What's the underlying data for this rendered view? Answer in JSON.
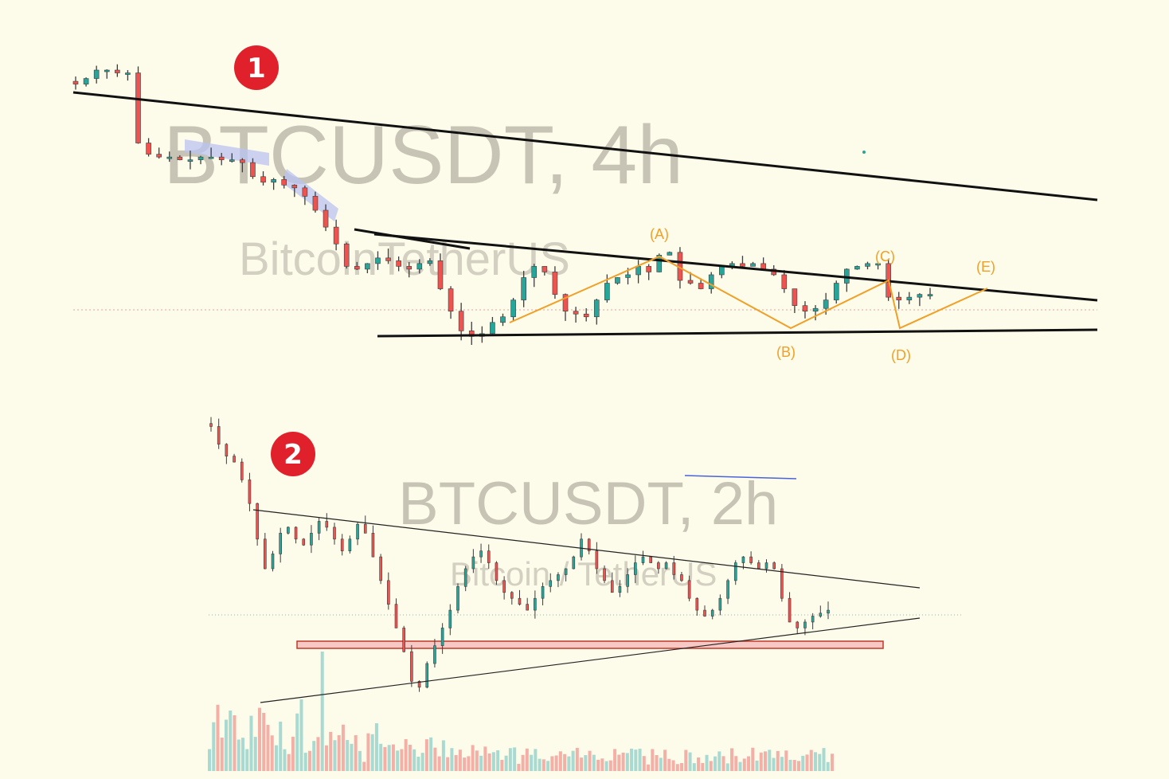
{
  "colors": {
    "background": "#fdfbe9",
    "up": "#26a69a",
    "down": "#ef5350",
    "wick": "#3c3c3c",
    "trendline": "#111111",
    "wave": "#f0a028",
    "watermark": "#c7c4b6",
    "badge": "#e0202a",
    "channel": "#7b8fe0",
    "support_zone": "#f8c8c4"
  },
  "panel1": {
    "badge": "1",
    "watermark_title": "BTCUSDT, 4h",
    "watermark_subtitle": "BitcoinTetherUS",
    "wave_labels": [
      "(A)",
      "(B)",
      "(C)",
      "(D)",
      "(E)"
    ]
  },
  "panel2": {
    "badge": "2",
    "watermark_title": "BTCUSDT, 2h",
    "watermark_subtitle": "Bitcoin / TetherUS"
  },
  "chart_data": [
    {
      "type": "candlestick",
      "title": "BTCUSDT, 4h",
      "subtitle": "BitcoinTetherUS",
      "description_pattern": "descending trendline above contracting triangle",
      "close_series_relative": [
        0.95,
        0.97,
        1.0,
        1.0,
        0.99,
        0.99,
        0.74,
        0.7,
        0.69,
        0.69,
        0.68,
        0.68,
        0.69,
        0.69,
        0.68,
        0.68,
        0.67,
        0.62,
        0.6,
        0.61,
        0.59,
        0.58,
        0.55,
        0.5,
        0.44,
        0.38,
        0.3,
        0.29,
        0.31,
        0.33,
        0.32,
        0.3,
        0.29,
        0.31,
        0.32,
        0.22,
        0.14,
        0.07,
        0.05,
        0.06,
        0.1,
        0.12,
        0.18,
        0.26,
        0.3,
        0.28,
        0.2,
        0.14,
        0.13,
        0.12,
        0.18,
        0.24,
        0.26,
        0.27,
        0.3,
        0.28,
        0.34,
        0.35,
        0.25,
        0.24,
        0.22,
        0.27,
        0.3,
        0.31,
        0.3,
        0.31,
        0.29,
        0.27,
        0.22,
        0.16,
        0.14,
        0.15,
        0.18,
        0.24,
        0.29,
        0.3,
        0.31,
        0.31,
        0.19,
        0.18,
        0.19,
        0.2,
        0.2
      ],
      "waves": [
        "(A)",
        "(B)",
        "(C)",
        "(D)",
        "(E)"
      ]
    },
    {
      "type": "candlestick",
      "title": "BTCUSDT, 2h",
      "subtitle": "Bitcoin / TetherUS",
      "description_pattern": "symmetrical triangle with horizontal support zone and volume histogram",
      "close_series_relative": [
        0.98,
        0.92,
        0.88,
        0.86,
        0.8,
        0.72,
        0.6,
        0.5,
        0.55,
        0.62,
        0.64,
        0.6,
        0.58,
        0.62,
        0.66,
        0.64,
        0.6,
        0.56,
        0.6,
        0.65,
        0.62,
        0.54,
        0.46,
        0.38,
        0.3,
        0.22,
        0.12,
        0.1,
        0.18,
        0.24,
        0.3,
        0.36,
        0.44,
        0.5,
        0.54,
        0.56,
        0.52,
        0.46,
        0.42,
        0.4,
        0.38,
        0.36,
        0.4,
        0.44,
        0.46,
        0.48,
        0.5,
        0.54,
        0.6,
        0.56,
        0.5,
        0.46,
        0.42,
        0.44,
        0.48,
        0.52,
        0.54,
        0.52,
        0.5,
        0.52,
        0.48,
        0.46,
        0.4,
        0.36,
        0.34,
        0.36,
        0.4,
        0.46,
        0.52,
        0.54,
        0.52,
        0.5,
        0.52,
        0.5,
        0.4,
        0.32,
        0.3,
        0.32,
        0.34,
        0.35,
        0.36
      ]
    }
  ]
}
